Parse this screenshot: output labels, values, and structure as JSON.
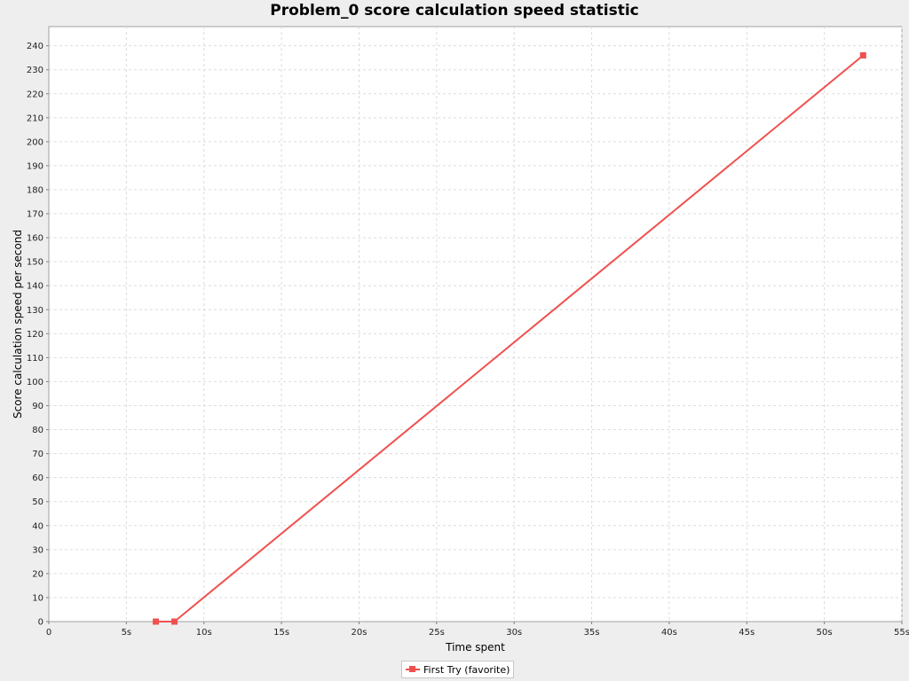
{
  "chart_data": {
    "type": "line",
    "title": "Problem_0 score calculation speed statistic",
    "xlabel": "Time spent",
    "ylabel": "Score calculation speed per second",
    "xlim": [
      0,
      55
    ],
    "ylim": [
      0,
      248
    ],
    "x_ticks": [
      0,
      5,
      10,
      15,
      20,
      25,
      30,
      35,
      40,
      45,
      50,
      55
    ],
    "x_tick_labels": [
      "0",
      "5s",
      "10s",
      "15s",
      "20s",
      "25s",
      "30s",
      "35s",
      "40s",
      "45s",
      "50s",
      "55s"
    ],
    "y_ticks": [
      0,
      10,
      20,
      30,
      40,
      50,
      60,
      70,
      80,
      90,
      100,
      110,
      120,
      130,
      140,
      150,
      160,
      170,
      180,
      190,
      200,
      210,
      220,
      230,
      240
    ],
    "grid": true,
    "legend_position": "bottom-center",
    "series": [
      {
        "name": "First Try (favorite)",
        "color": "#f05050",
        "marker": "square",
        "x": [
          6.9,
          8.1,
          52.5
        ],
        "y": [
          0,
          0,
          236
        ]
      }
    ]
  }
}
